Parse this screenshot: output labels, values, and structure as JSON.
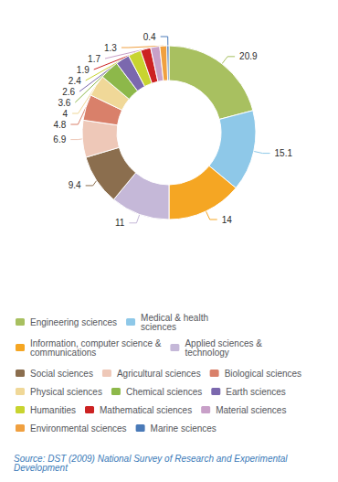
{
  "chart_data": {
    "type": "pie",
    "categories": [
      "Engineering sciences",
      "Medical & health\nsciences",
      "Information, computer science &\ncommunications",
      "Applied sciences &\ntechnology",
      "Social sciences",
      "Agricultural sciences",
      "Biological sciences",
      "Physical sciences",
      "Chemical sciences",
      "Earth sciences",
      "Humanities",
      "Mathematical sciences",
      "Material sciences",
      "Environmental sciences",
      "Marine sciences"
    ],
    "values": [
      20.9,
      15.1,
      14.0,
      11.0,
      9.4,
      6.9,
      4.8,
      4.0,
      3.6,
      2.6,
      2.4,
      1.9,
      1.7,
      1.3,
      0.4
    ],
    "colors": [
      "#a8c060",
      "#8ec8e8",
      "#f5a623",
      "#c5b8d8",
      "#8b6e4e",
      "#eec8b8",
      "#d9806a",
      "#f0d898",
      "#8db84a",
      "#7b68ae",
      "#c8d430",
      "#cc2222",
      "#c8a0c8",
      "#f0a040",
      "#4a7ab8"
    ],
    "data_labels": true,
    "legend": "bottom",
    "annotations": [
      "Source: DST (2009) National Survey of Research and Experimental Development"
    ]
  }
}
